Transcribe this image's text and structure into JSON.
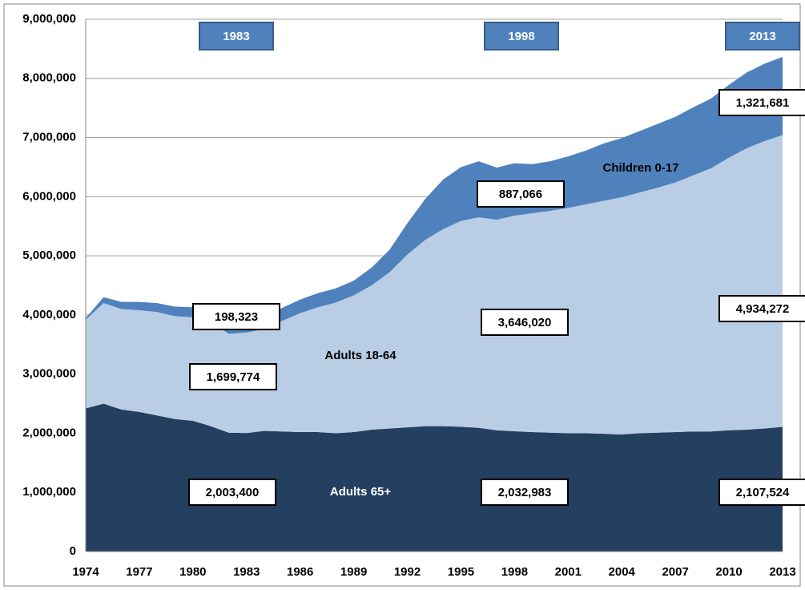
{
  "chart_data": {
    "type": "stacked_area",
    "x": [
      1974,
      1975,
      1976,
      1977,
      1978,
      1979,
      1980,
      1981,
      1982,
      1983,
      1984,
      1985,
      1986,
      1987,
      1988,
      1989,
      1990,
      1991,
      1992,
      1993,
      1994,
      1995,
      1996,
      1997,
      1998,
      1999,
      2000,
      2001,
      2002,
      2003,
      2004,
      2005,
      2006,
      2007,
      2008,
      2009,
      2010,
      2011,
      2012,
      2013
    ],
    "xlim": [
      1974,
      2013
    ],
    "xticks": [
      1974,
      1977,
      1980,
      1983,
      1986,
      1989,
      1992,
      1995,
      1998,
      2001,
      2004,
      2007,
      2010,
      2013
    ],
    "ylim": [
      0,
      9000000
    ],
    "yticks": [
      0,
      {
        "value": 1000000,
        "label": "1,000,000"
      },
      {
        "value": 2000000,
        "label": "2,000,000"
      },
      {
        "value": 3000000,
        "label": "3,000,000"
      },
      {
        "value": 4000000,
        "label": "4,000,000"
      },
      {
        "value": 5000000,
        "label": "5,000,000"
      },
      {
        "value": 6000000,
        "label": "6,000,000"
      },
      {
        "value": 7000000,
        "label": "7,000,000"
      },
      {
        "value": 8000000,
        "label": "8,000,000"
      },
      {
        "value": 9000000,
        "label": "9,000,000"
      }
    ],
    "grid": true,
    "annotations": [
      "1983",
      "1998",
      "2013"
    ],
    "series": [
      {
        "name": "Adults 65+",
        "color": "#243f60",
        "values": [
          2420000,
          2500000,
          2400000,
          2360000,
          2300000,
          2240000,
          2210000,
          2120000,
          2010000,
          2003400,
          2040000,
          2030000,
          2020000,
          2020000,
          2000000,
          2020000,
          2060000,
          2080000,
          2100000,
          2120000,
          2120000,
          2110000,
          2090000,
          2050000,
          2032983,
          2020000,
          2010000,
          2000000,
          2000000,
          1990000,
          1980000,
          2000000,
          2010000,
          2020000,
          2030000,
          2030000,
          2050000,
          2060000,
          2080000,
          2107524
        ],
        "value_labels": [
          null,
          null,
          null,
          null,
          null,
          null,
          null,
          null,
          null,
          "2,003,400",
          null,
          null,
          null,
          null,
          null,
          null,
          null,
          null,
          null,
          null,
          null,
          null,
          null,
          null,
          "2,032,983",
          null,
          null,
          null,
          null,
          null,
          null,
          null,
          null,
          null,
          null,
          null,
          null,
          null,
          null,
          "2,107,524"
        ]
      },
      {
        "name": "Adults 18-64",
        "color": "#b9cde5",
        "values": [
          1500000,
          1700000,
          1700000,
          1720000,
          1750000,
          1740000,
          1750000,
          1760000,
          1670000,
          1699774,
          1720000,
          1870000,
          2010000,
          2110000,
          2210000,
          2310000,
          2440000,
          2640000,
          2920000,
          3150000,
          3330000,
          3480000,
          3560000,
          3560000,
          3646020,
          3700000,
          3750000,
          3810000,
          3870000,
          3940000,
          4010000,
          4070000,
          4140000,
          4220000,
          4330000,
          4450000,
          4610000,
          4760000,
          4860000,
          4934272
        ],
        "value_labels": [
          null,
          null,
          null,
          null,
          null,
          null,
          null,
          null,
          null,
          "1,699,774",
          null,
          null,
          null,
          null,
          null,
          null,
          null,
          null,
          null,
          null,
          null,
          null,
          null,
          null,
          "3,646,020",
          null,
          null,
          null,
          null,
          null,
          null,
          null,
          null,
          null,
          null,
          null,
          null,
          null,
          null,
          "4,934,272"
        ]
      },
      {
        "name": "Children 0-17",
        "color": "#4f81bd",
        "values": [
          30000,
          100000,
          120000,
          140000,
          150000,
          160000,
          170000,
          180000,
          190000,
          198323,
          220000,
          220000,
          230000,
          240000,
          240000,
          250000,
          300000,
          380000,
          530000,
          690000,
          840000,
          910000,
          950000,
          880000,
          887066,
          830000,
          840000,
          870000,
          910000,
          970000,
          1000000,
          1040000,
          1080000,
          1110000,
          1150000,
          1180000,
          1230000,
          1280000,
          1310000,
          1321681
        ],
        "value_labels": [
          null,
          null,
          null,
          null,
          null,
          null,
          null,
          null,
          null,
          "198,323",
          null,
          null,
          null,
          null,
          null,
          null,
          null,
          null,
          null,
          null,
          null,
          null,
          null,
          null,
          "887,066",
          null,
          null,
          null,
          null,
          null,
          null,
          null,
          null,
          null,
          null,
          null,
          null,
          null,
          null,
          "1,321,681"
        ]
      }
    ]
  }
}
